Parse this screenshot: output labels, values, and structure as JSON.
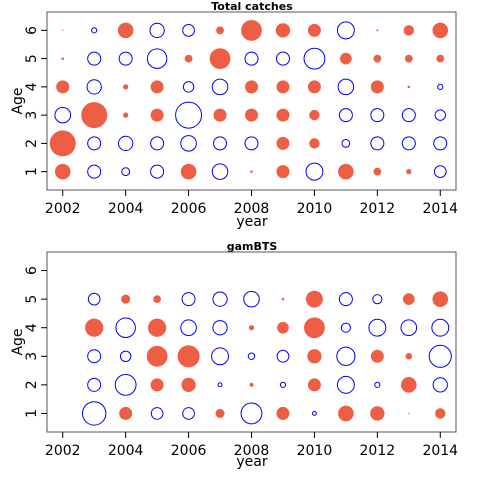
{
  "colors": {
    "positive": "#EE5E44",
    "negative": "#0000FF"
  },
  "chart_data": [
    {
      "type": "scatter",
      "title": "Total catches",
      "xlabel": "year",
      "ylabel": "Age",
      "xlim": [
        2001.5,
        2014.5
      ],
      "ylim": [
        0.35,
        6.65
      ],
      "xticks": [
        2002,
        2004,
        2006,
        2008,
        2010,
        2012,
        2014
      ],
      "yticks": [
        1,
        2,
        3,
        4,
        5,
        6
      ],
      "x": [
        2002,
        2003,
        2004,
        2005,
        2006,
        2007,
        2008,
        2009,
        2010,
        2011,
        2012,
        2013,
        2014
      ],
      "ages": [
        1,
        2,
        3,
        4,
        5,
        6
      ],
      "residuals": [
        [
          0.6,
          0.5,
          0.3,
          0.5,
          0.6,
          0.6,
          0.1,
          0.5,
          0.65,
          0.6,
          0.3,
          0.2,
          0.45
        ],
        [
          1.0,
          0.5,
          0.55,
          0.5,
          0.6,
          0.5,
          0.5,
          0.5,
          0.4,
          0.3,
          0.5,
          0.5,
          0.5
        ],
        [
          0.6,
          1.0,
          0.2,
          0.5,
          1.0,
          0.5,
          0.5,
          0.5,
          0.4,
          0.5,
          0.5,
          0.5,
          0.4
        ],
        [
          0.5,
          0.55,
          0.2,
          0.5,
          0.4,
          0.6,
          0.5,
          0.5,
          0.5,
          0.6,
          0.5,
          0.1,
          0.2
        ],
        [
          0.1,
          0.5,
          0.5,
          0.75,
          0.3,
          0.8,
          0.5,
          0.5,
          0.8,
          0.45,
          0.3,
          0.3,
          0.3
        ],
        [
          0.05,
          0.2,
          0.6,
          0.55,
          0.45,
          0.3,
          0.8,
          0.55,
          0.5,
          0.65,
          0.08,
          0.4,
          0.6
        ]
      ],
      "signs": [
        [
          "+",
          "-",
          "-",
          "-",
          "+",
          "-",
          "+",
          "+",
          "-",
          "+",
          "+",
          "+",
          "-"
        ],
        [
          "+",
          "-",
          "-",
          "-",
          "-",
          "-",
          "-",
          "+",
          "+",
          "-",
          "-",
          "-",
          "-"
        ],
        [
          "-",
          "+",
          "+",
          "+",
          "-",
          "+",
          "+",
          "+",
          "+",
          "-",
          "-",
          "-",
          "-"
        ],
        [
          "+",
          "-",
          "+",
          "+",
          "-",
          "-",
          "+",
          "+",
          "+",
          "-",
          "+",
          "+",
          "-"
        ],
        [
          "+",
          "-",
          "-",
          "-",
          "+",
          "+",
          "-",
          "-",
          "-",
          "+",
          "+",
          "+",
          "+"
        ],
        [
          "+",
          "-",
          "+",
          "-",
          "-",
          "+",
          "+",
          "+",
          "+",
          "-",
          "+",
          "+",
          "+"
        ]
      ]
    },
    {
      "type": "scatter",
      "title": "gamBTS",
      "xlabel": "year",
      "ylabel": "Age",
      "xlim": [
        2001.5,
        2014.5
      ],
      "ylim": [
        0.35,
        6.65
      ],
      "xticks": [
        2002,
        2004,
        2006,
        2008,
        2010,
        2012,
        2014
      ],
      "yticks": [
        1,
        2,
        3,
        4,
        5,
        6
      ],
      "x": [
        2003,
        2004,
        2005,
        2006,
        2007,
        2008,
        2009,
        2010,
        2011,
        2012,
        2013,
        2014
      ],
      "ages": [
        1,
        2,
        3,
        4,
        5
      ],
      "residuals": [
        [
          0.9,
          0.5,
          0.45,
          0.45,
          0.35,
          0.8,
          0.5,
          0.15,
          0.6,
          0.55,
          0.05,
          0.4
        ],
        [
          0.5,
          0.8,
          0.5,
          0.55,
          0.15,
          0.15,
          0.2,
          0.5,
          0.65,
          0.2,
          0.6,
          0.55
        ],
        [
          0.5,
          0.4,
          0.8,
          0.85,
          0.65,
          0.25,
          0.45,
          0.55,
          0.7,
          0.5,
          0.25,
          0.85
        ],
        [
          0.7,
          0.75,
          0.7,
          0.6,
          0.55,
          0.2,
          0.45,
          0.8,
          0.35,
          0.65,
          0.6,
          0.65
        ],
        [
          0.45,
          0.35,
          0.3,
          0.5,
          0.55,
          0.6,
          0.1,
          0.65,
          0.5,
          0.35,
          0.45,
          0.6
        ]
      ],
      "signs": [
        [
          "-",
          "+",
          "-",
          "-",
          "+",
          "-",
          "+",
          "-",
          "+",
          "+",
          "+",
          "+"
        ],
        [
          "-",
          "-",
          "+",
          "+",
          "-",
          "+",
          "-",
          "+",
          "-",
          "-",
          "+",
          "-"
        ],
        [
          "-",
          "-",
          "+",
          "+",
          "-",
          "-",
          "-",
          "+",
          "-",
          "+",
          "+",
          "-"
        ],
        [
          "+",
          "-",
          "+",
          "-",
          "-",
          "+",
          "+",
          "+",
          "-",
          "-",
          "-",
          "-"
        ],
        [
          "-",
          "+",
          "+",
          "-",
          "-",
          "-",
          "+",
          "+",
          "-",
          "-",
          "+",
          "+"
        ]
      ]
    }
  ]
}
